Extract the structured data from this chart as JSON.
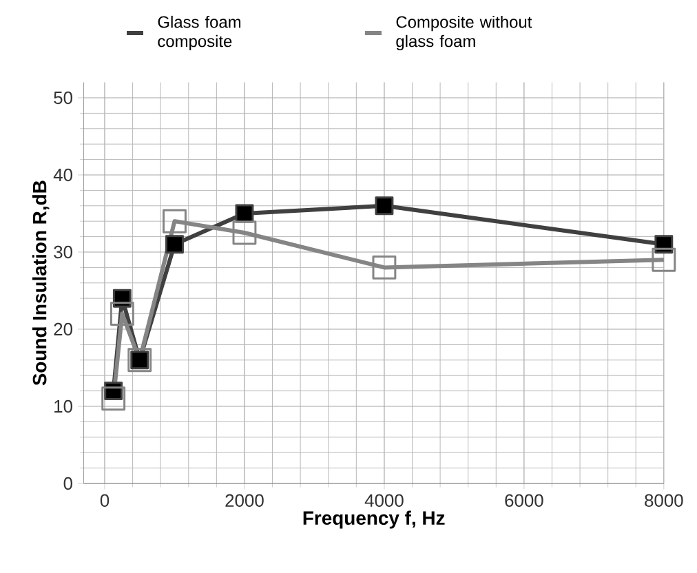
{
  "chart_data": {
    "type": "line",
    "xlabel": "Frequency f, Hz",
    "ylabel": "Sound Insulation  R,dB",
    "x": [
      125,
      250,
      500,
      1000,
      2000,
      4000,
      8000
    ],
    "series": [
      {
        "name": "Glass foam composite",
        "color": "#404040",
        "values": [
          12,
          24,
          16,
          31,
          35,
          36,
          31
        ]
      },
      {
        "name": "Composite without glass foam",
        "color": "#858585",
        "values": [
          11,
          22,
          16,
          34,
          32.5,
          28,
          29
        ]
      }
    ],
    "xlim": [
      -300,
      8000
    ],
    "ylim": [
      0,
      52
    ],
    "xticks": [
      0,
      2000,
      4000,
      6000,
      8000
    ],
    "yticks": [
      0,
      10,
      20,
      30,
      40,
      50
    ],
    "grid": true,
    "legend": "top",
    "marker": "square",
    "line_style": "solid"
  }
}
